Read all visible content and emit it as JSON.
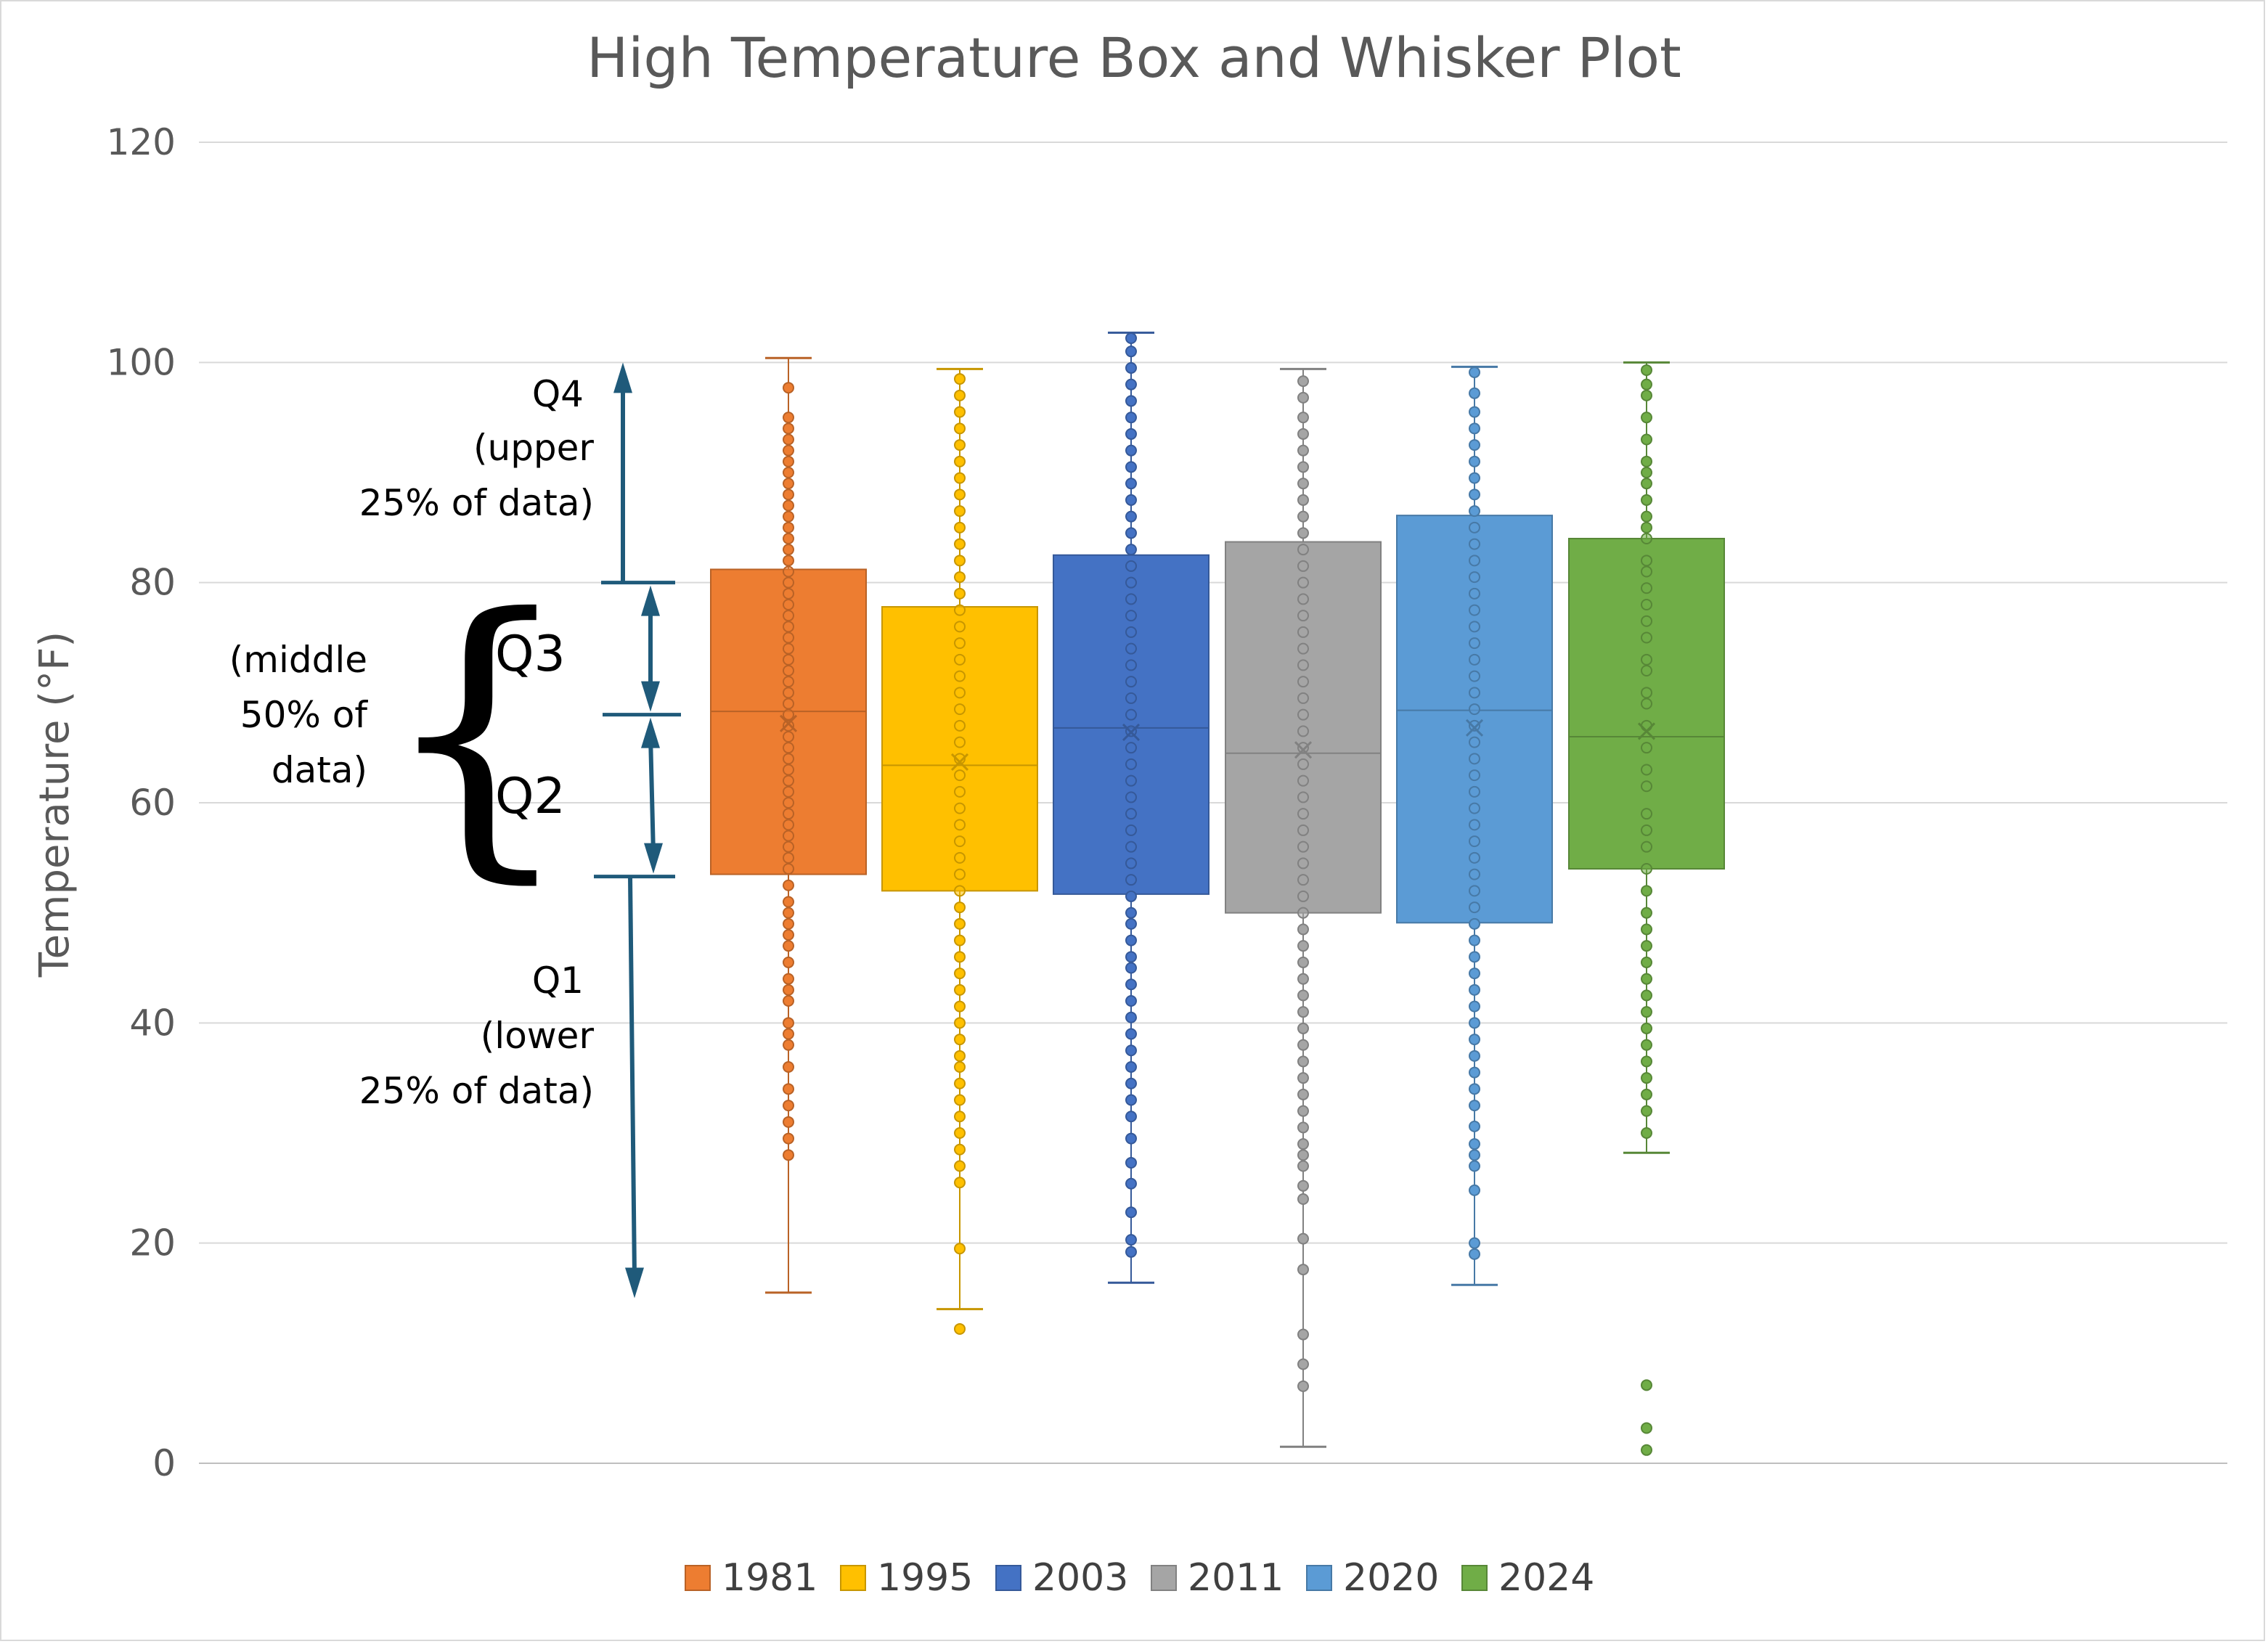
{
  "chart_data": {
    "type": "boxplot",
    "title": "High Temperature Box and Whisker Plot",
    "ylabel": "Temperature (°F)",
    "xlabel": "",
    "ylim": [
      0,
      120
    ],
    "yticks": [
      0,
      20,
      40,
      60,
      80,
      100,
      120
    ],
    "grid": true,
    "legend_position": "bottom",
    "series": [
      {
        "name": "1981",
        "color": "#ED7D31",
        "min": 15.5,
        "q1": 53.5,
        "median": 68.3,
        "mean": 67.2,
        "q3": 81.2,
        "max": 100.4,
        "points": [
          28,
          29.5,
          31,
          32.5,
          34,
          36,
          38,
          39,
          40,
          42,
          43,
          44,
          45.5,
          47,
          48,
          49,
          50,
          51,
          52.5,
          54,
          55,
          56,
          57,
          58,
          59,
          60,
          61,
          62,
          63,
          64,
          65,
          66,
          67,
          68,
          69,
          70,
          71,
          72,
          73,
          74,
          75,
          76,
          77,
          78,
          79,
          80,
          81,
          82,
          83,
          84,
          85,
          86,
          87,
          88,
          89,
          90,
          91,
          92,
          93,
          94,
          95,
          97.7
        ],
        "outliers": []
      },
      {
        "name": "1995",
        "color": "#FFC000",
        "min": 14,
        "q1": 52,
        "median": 63.4,
        "mean": 63.7,
        "q3": 77.8,
        "max": 99.4,
        "points": [
          19.5,
          25.5,
          27,
          28.5,
          30,
          31.5,
          33,
          34.5,
          36,
          37,
          38.5,
          40,
          41.5,
          43,
          44.5,
          46,
          47.5,
          49,
          50.5,
          52,
          53.5,
          55,
          56.5,
          58,
          59.5,
          61,
          62.5,
          64,
          65.5,
          67,
          68.5,
          70,
          71.5,
          73,
          74.5,
          76,
          77.5,
          79,
          80.5,
          82,
          83.5,
          85,
          86.5,
          88,
          89.5,
          91,
          92.5,
          94,
          95.5,
          97,
          98.5
        ],
        "outliers": [
          12.2
        ]
      },
      {
        "name": "2003",
        "color": "#4472C4",
        "min": 16.4,
        "q1": 51.7,
        "median": 66.8,
        "mean": 66.4,
        "q3": 82.5,
        "max": 102.7,
        "points": [
          19.2,
          20.3,
          22.8,
          25.4,
          27.3,
          29.5,
          31.5,
          33,
          34.5,
          36,
          37.5,
          39,
          40.5,
          42,
          43.5,
          45,
          46,
          47.5,
          49,
          50,
          51.5,
          53,
          54.5,
          56,
          57.5,
          59,
          60.5,
          62,
          63.5,
          65,
          66.5,
          68,
          69.5,
          71,
          72.5,
          74,
          75.5,
          77,
          78.5,
          80,
          81.5,
          83,
          84.5,
          86,
          87.5,
          89,
          90.5,
          92,
          93.5,
          95,
          96.5,
          98,
          99.5,
          101,
          102.2
        ],
        "outliers": []
      },
      {
        "name": "2011",
        "color": "#A5A5A5",
        "min": 1.5,
        "q1": 50,
        "median": 64.5,
        "mean": 64.8,
        "q3": 83.7,
        "max": 99.4,
        "points": [
          7,
          9,
          11.7,
          17.6,
          20.4,
          24,
          25.2,
          27,
          28,
          29,
          30.5,
          32,
          33.5,
          35,
          36.5,
          38,
          39.5,
          41,
          42.5,
          44,
          45.5,
          47,
          48.5,
          50,
          51.5,
          53,
          54.5,
          56,
          57.5,
          59,
          60.5,
          62,
          63.5,
          65,
          66.5,
          68,
          69.5,
          71,
          72.5,
          74,
          75.5,
          77,
          78.5,
          80,
          81.5,
          83,
          84.5,
          86,
          87.5,
          89,
          90.5,
          92,
          93.5,
          95,
          96.8,
          98.3
        ],
        "outliers": []
      },
      {
        "name": "2020",
        "color": "#5B9BD5",
        "min": 16.2,
        "q1": 49.1,
        "median": 68.4,
        "mean": 66.8,
        "q3": 86.1,
        "max": 99.6,
        "points": [
          19,
          20,
          24.8,
          27,
          28,
          29,
          30.6,
          32.5,
          34,
          35.5,
          37,
          38.5,
          40,
          41.5,
          43,
          44.5,
          46,
          47.5,
          49,
          50.5,
          52,
          53.5,
          55,
          56.5,
          58,
          59.5,
          61,
          62.5,
          64,
          65.5,
          67,
          68.5,
          70,
          71.5,
          73,
          74.5,
          76,
          77.5,
          79,
          80.5,
          82,
          83.5,
          85,
          86.5,
          88,
          89.5,
          91,
          92.5,
          94,
          95.5,
          97.2,
          99.1
        ],
        "outliers": []
      },
      {
        "name": "2024",
        "color": "#70AD47",
        "min": 28.2,
        "q1": 54,
        "median": 66,
        "mean": 66.5,
        "q3": 84,
        "max": 100,
        "points": [
          30,
          32,
          33.5,
          35,
          36.5,
          38,
          39.5,
          41,
          42.5,
          44,
          45.5,
          47,
          48.5,
          50,
          52,
          54,
          56,
          57.5,
          59,
          61.5,
          63,
          65,
          67,
          69,
          70,
          72,
          73,
          75,
          76.5,
          78,
          79.5,
          81,
          82,
          84,
          85,
          86,
          87.5,
          89,
          90,
          91,
          93,
          95,
          97,
          98,
          99.3
        ],
        "outliers": [
          1.2,
          3.2,
          7.1
        ]
      }
    ]
  },
  "annotations": {
    "q4_label": "Q4",
    "q4_sub1": "(upper",
    "q4_sub2": "25% of data)",
    "q3_label": "Q3",
    "q2_label": "Q2",
    "middle_1": "(middle",
    "middle_2": "50% of",
    "middle_3": "data)",
    "brace": "{",
    "q1_label": "Q1",
    "q1_sub1": "(lower",
    "q1_sub2": "25% of data)",
    "arrow_color": "#1F5A7A",
    "levels": {
      "top": 100,
      "q3_line": 80,
      "median_line": 68,
      "q1_line": 53.3,
      "bottom": 15
    }
  }
}
